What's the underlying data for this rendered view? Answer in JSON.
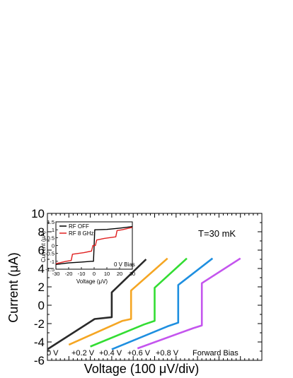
{
  "chart_data": [
    {
      "type": "line",
      "title": "",
      "xlabel": "Voltage (100 μV/div)",
      "ylabel": "Current (μA)",
      "ylim": [
        -6,
        10
      ],
      "yticks": [
        -6,
        -4,
        -2,
        0,
        2,
        4,
        6,
        8,
        10
      ],
      "xticks_labeled": false,
      "grid": false,
      "annotations": {
        "temperature": "T=30 mK",
        "bias_direction": "Forward Bias",
        "offsets": [
          "0 V",
          "+0.2 V",
          "+0.4 V",
          "+0.6 V",
          "+0.8 V"
        ]
      },
      "series": [
        {
          "name": "0 V",
          "color": "#2a2a2a",
          "x": [
            0,
            2.2,
            3.0,
            3.0,
            4.6
          ],
          "y": [
            -4.8,
            -1.5,
            -1.3,
            1.4,
            5.0
          ]
        },
        {
          "name": "+0.2 V",
          "color": "#f5a623",
          "x": [
            1.0,
            3.5,
            3.9,
            3.9,
            5.6
          ],
          "y": [
            -4.3,
            -1.7,
            -1.5,
            1.6,
            5.1
          ]
        },
        {
          "name": "+0.4 V",
          "color": "#33dd33",
          "x": [
            2.0,
            4.5,
            5.0,
            5.0,
            6.5
          ],
          "y": [
            -4.5,
            -2.1,
            -1.7,
            1.9,
            5.1
          ]
        },
        {
          "name": "+0.6 V",
          "color": "#1e8fe0",
          "x": [
            3.0,
            5.6,
            6.1,
            6.1,
            7.7
          ],
          "y": [
            -4.8,
            -2.3,
            -1.9,
            2.2,
            5.1
          ]
        },
        {
          "name": "+0.8 V",
          "color": "#c455ee",
          "x": [
            4.2,
            6.8,
            7.2,
            7.2,
            9.0
          ],
          "y": [
            -4.7,
            -2.5,
            -2.2,
            2.4,
            5.1
          ]
        }
      ]
    },
    {
      "type": "line",
      "title": "",
      "xlabel": "Voltage (μV)",
      "ylabel": "Current (μA)",
      "xlim": [
        -30,
        30
      ],
      "ylim": [
        -1.5,
        1.5
      ],
      "xticks": [
        -30,
        -20,
        -10,
        0,
        10,
        20,
        30
      ],
      "yticks": [
        -1.5,
        -1.0,
        -0.5,
        0,
        0.5,
        1.0,
        1.5
      ],
      "ytick_labels": [
        "-1.5",
        "-1",
        "-0.5",
        "0",
        "0.5",
        "1",
        "1.5"
      ],
      "legend_position": "top-left",
      "annotation": "0 V Bias",
      "series": [
        {
          "name": "RF OFF",
          "color": "#000000",
          "x": [
            -30,
            -20,
            -10,
            -2,
            -0.5,
            0.5,
            2,
            10,
            20,
            30
          ],
          "y": [
            -1.2,
            -1.1,
            -1.05,
            -1.0,
            -1.0,
            1.0,
            1.0,
            1.02,
            1.1,
            1.2
          ]
        },
        {
          "name": "RF 8 GHz",
          "color": "#e02020",
          "x": [
            -30,
            -22,
            -18,
            -17,
            -8,
            -2,
            -1,
            1,
            2,
            8,
            17,
            18,
            22,
            30
          ],
          "y": [
            -1.15,
            -1.0,
            -0.95,
            -0.55,
            -0.45,
            -0.35,
            0,
            0,
            0.35,
            0.45,
            0.55,
            0.95,
            1.0,
            1.15
          ]
        }
      ]
    }
  ]
}
